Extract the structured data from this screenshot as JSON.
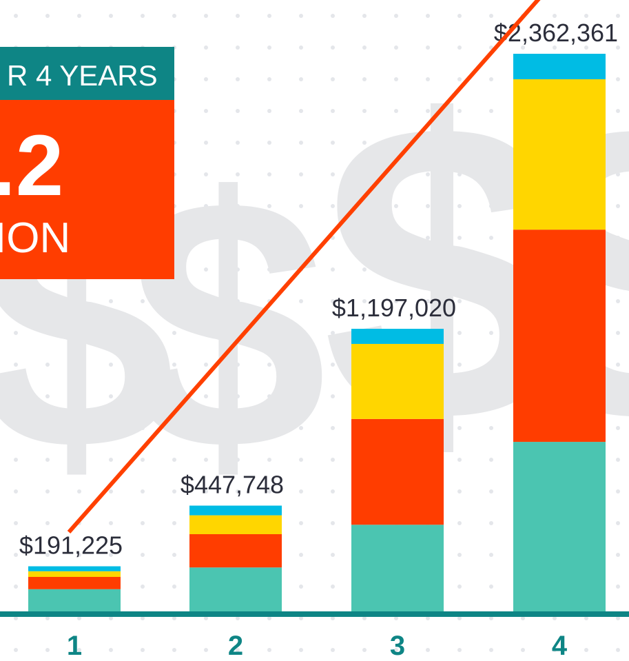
{
  "chart_data": {
    "type": "stacked_bar",
    "categories": [
      "1",
      "2",
      "3",
      "4"
    ],
    "series": [
      {
        "color": "#4bc5b1",
        "values": [
          94000,
          186000,
          367000,
          718000
        ]
      },
      {
        "color": "#ff3d00",
        "values": [
          52000,
          141000,
          448000,
          899000
        ]
      },
      {
        "color": "#ffd600",
        "values": [
          24000,
          80000,
          318000,
          637000
        ]
      },
      {
        "color": "#00bce4",
        "values": [
          21000,
          41000,
          64000,
          108000
        ]
      }
    ],
    "totals": [
      191225,
      447748,
      1197020,
      2362361
    ],
    "value_labels": [
      "$191,225",
      "$447,748",
      "$1,197,020",
      "$2,362,361"
    ],
    "ylim": [
      0,
      2400000
    ],
    "trend_color": "#ff4000"
  },
  "panel": {
    "header": "R 4 YEARS",
    "figure": ".2",
    "unit": "ION"
  },
  "background_symbol": "$"
}
